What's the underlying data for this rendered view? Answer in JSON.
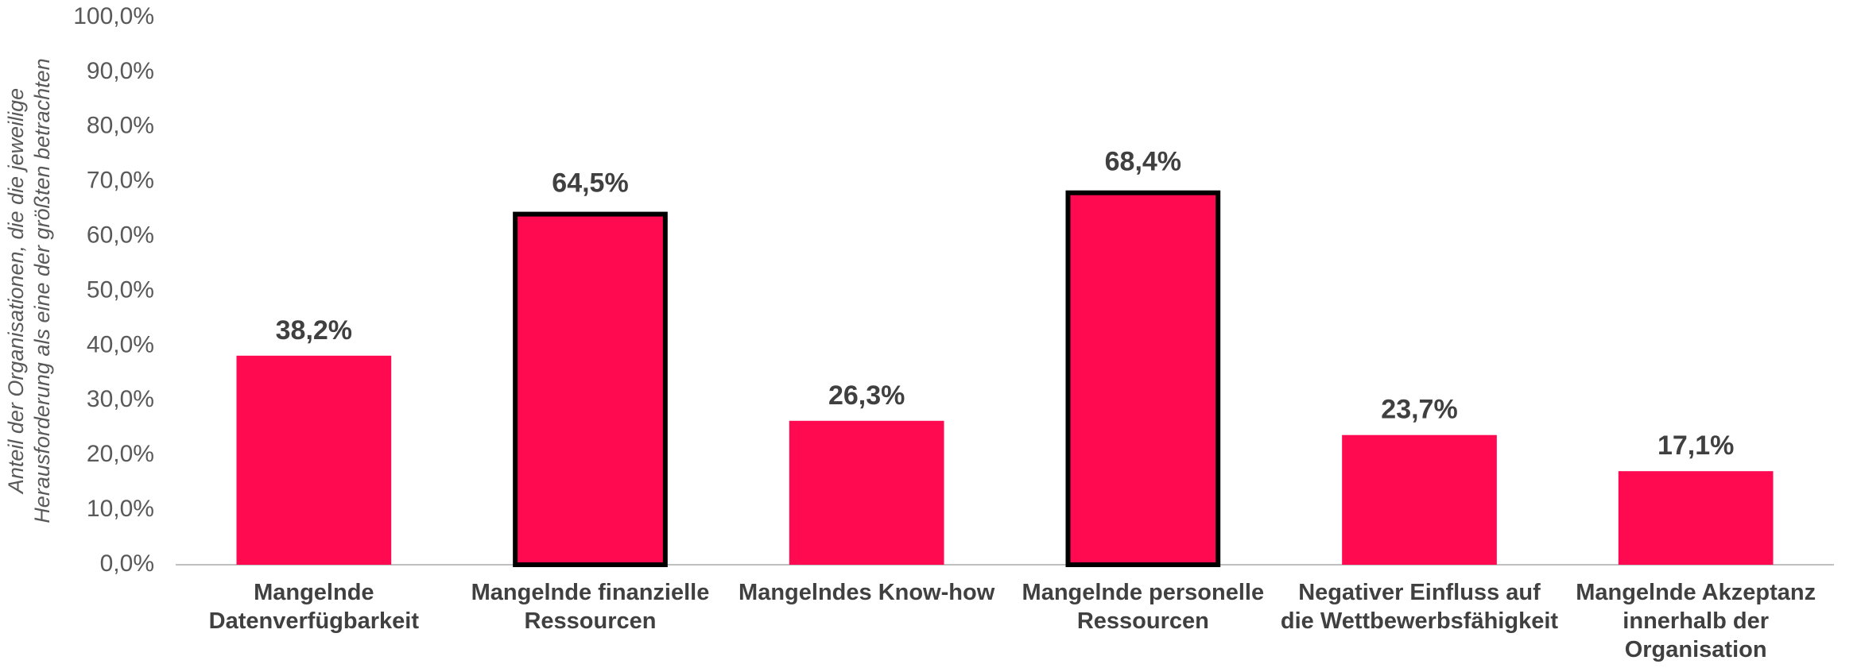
{
  "chart_data": {
    "type": "bar",
    "y_axis_label": "Anteil der Organisationen, die die jeweilige Herausforderung als eine der größten betrachten",
    "categories": [
      "Mangelnde Datenverfügbarkeit",
      "Mangelnde finanzielle Ressourcen",
      "Mangelndes Know-how",
      "Mangelnde personelle Ressourcen",
      "Negativer Einfluss auf die Wettbewerbsfähigkeit",
      "Mangelnde Akzeptanz innerhalb der Organisation"
    ],
    "values": [
      38.2,
      64.5,
      26.3,
      68.4,
      23.7,
      17.1
    ],
    "value_labels": [
      "38,2%",
      "64,5%",
      "26,3%",
      "68,4%",
      "23,7%",
      "17,1%"
    ],
    "highlighted": [
      false,
      true,
      false,
      true,
      false,
      false
    ],
    "color": "#ff0a50",
    "highlight_color": "#000000",
    "ylim": [
      0,
      100
    ],
    "yticks": [
      {
        "value": 0,
        "label": "0,0%"
      },
      {
        "value": 10,
        "label": "10,0%"
      },
      {
        "value": 20,
        "label": "20,0%"
      },
      {
        "value": 30,
        "label": "30,0%"
      },
      {
        "value": 40,
        "label": "40,0%"
      },
      {
        "value": 50,
        "label": "50,0%"
      },
      {
        "value": 60,
        "label": "60,0%"
      },
      {
        "value": 70,
        "label": "70,0%"
      },
      {
        "value": 80,
        "label": "80,0%"
      },
      {
        "value": 90,
        "label": "90,0%"
      },
      {
        "value": 100,
        "label": "100,0%"
      }
    ],
    "grid": false
  }
}
